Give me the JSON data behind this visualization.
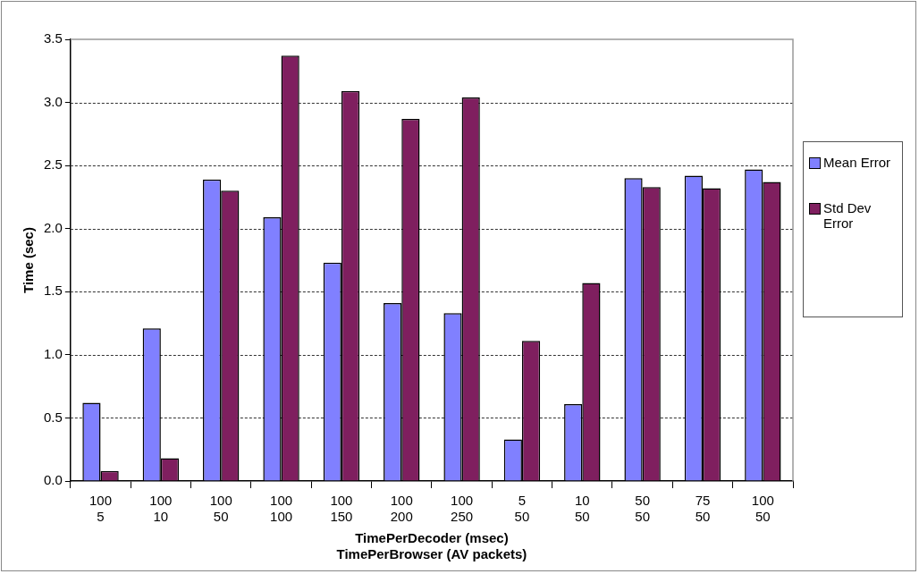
{
  "chart_data": {
    "type": "bar",
    "xlabel": "TimePerDecoder (msec)\nTimePerBrowser (AV packets)",
    "ylabel": "Time (sec)",
    "categories": [
      "100\n5",
      "100\n10",
      "100\n50",
      "100\n100",
      "100\n150",
      "100\n200",
      "100\n250",
      "5\n50",
      "10\n50",
      "50\n50",
      "75\n50",
      "100\n50"
    ],
    "series": [
      {
        "name": "Mean Error",
        "color": "#8080ff",
        "values": [
          0.62,
          1.21,
          2.39,
          2.09,
          1.73,
          1.41,
          1.33,
          0.33,
          0.61,
          2.4,
          2.42,
          2.47
        ]
      },
      {
        "name": "Std Dev Error",
        "color": "#7f1f5f",
        "values": [
          0.08,
          0.18,
          2.3,
          3.37,
          3.09,
          2.87,
          3.04,
          1.11,
          1.57,
          2.33,
          2.32,
          2.37
        ]
      }
    ],
    "ylim": [
      0,
      3.5
    ],
    "yticks": [
      {
        "value": 0,
        "label": "0.0"
      },
      {
        "value": 0.5,
        "label": "0.5"
      },
      {
        "value": 1,
        "label": "1.0"
      },
      {
        "value": 1.5,
        "label": "1.5"
      },
      {
        "value": 2,
        "label": "2.0"
      },
      {
        "value": 2.5,
        "label": "2.5"
      },
      {
        "value": 3,
        "label": "3.0"
      },
      {
        "value": 3.5,
        "label": "3.5"
      }
    ],
    "grid": "y",
    "legend": "right"
  }
}
